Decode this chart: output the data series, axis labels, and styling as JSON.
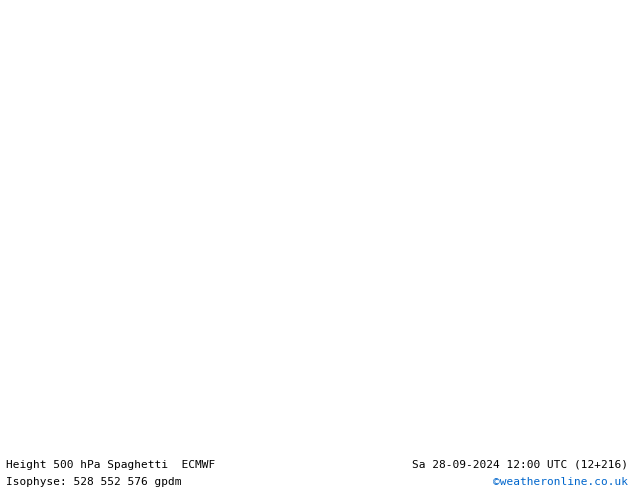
{
  "title_left": "Height 500 hPa Spaghetti  ECMWF",
  "title_right": "Sa 28-09-2024 12:00 UTC (12+216)",
  "subtitle_left": "Isophyse: 528 552 576 gpdm",
  "subtitle_right": "©weatheronline.co.uk",
  "bg_color": "#b3e6a0",
  "land_color": "#b3e6a0",
  "sea_color": "#d3d3d3",
  "text_color": "#000000",
  "copyright_color": "#0066cc",
  "figsize": [
    6.34,
    4.9
  ],
  "dpi": 100,
  "map_extent": [
    2.0,
    18.0,
    44.5,
    56.5
  ],
  "contour_colors": {
    "528": "#808080",
    "552": "#808080",
    "576": "#808080"
  },
  "spaghetti_line_colors": [
    "#808080",
    "#808080",
    "#808080",
    "#ff00ff",
    "#ff0000",
    "#00aaff",
    "#ffaa00",
    "#ffff00",
    "#00ffaa",
    "#ff69b4"
  ],
  "label_552_color": "#ff0000",
  "label_576_color": "#ff69b4",
  "label_528_color": "#808080"
}
